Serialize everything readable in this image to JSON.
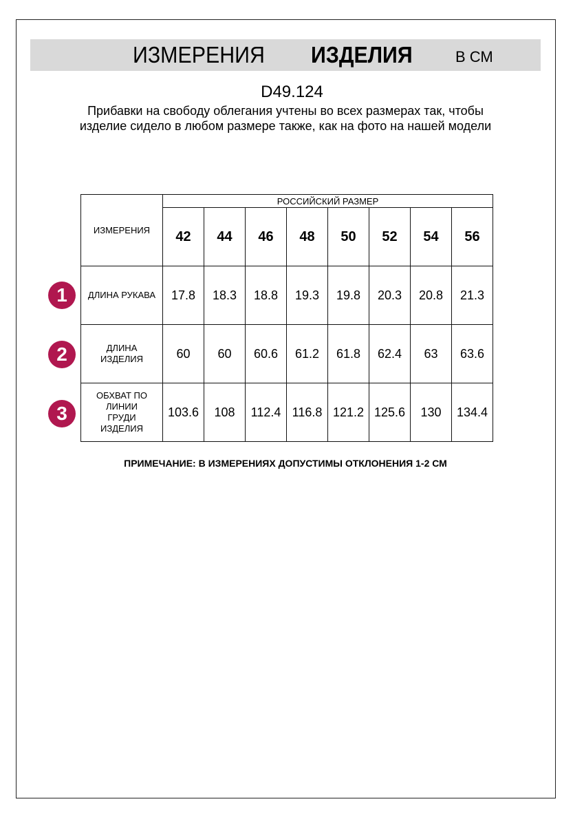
{
  "header": {
    "title_regular": "ИЗМЕРЕНИЯ",
    "title_bold": "ИЗДЕЛИЯ",
    "unit": "В СМ"
  },
  "product_code": "D49.124",
  "description": "Прибавки на свободу облегания учтены во всех размерах так, чтобы изделие сидело в любом размере также, как на фото на нашей модели",
  "table": {
    "measure_header": "ИЗМЕРЕНИЯ",
    "size_group_header": "РОССИЙСКИЙ РАЗМЕР",
    "sizes": [
      "42",
      "44",
      "46",
      "48",
      "50",
      "52",
      "54",
      "56"
    ],
    "rows": [
      {
        "number": "1",
        "label": "ДЛИНА РУКАВА",
        "values": [
          "17.8",
          "18.3",
          "18.8",
          "19.3",
          "19.8",
          "20.3",
          "20.8",
          "21.3"
        ]
      },
      {
        "number": "2",
        "label": "ДЛИНА ИЗДЕЛИЯ",
        "values": [
          "60",
          "60",
          "60.6",
          "61.2",
          "61.8",
          "62.4",
          "63",
          "63.6"
        ]
      },
      {
        "number": "3",
        "label": "ОБХВАТ ПО ЛИНИИ ГРУДИ ИЗДЕЛИЯ",
        "values": [
          "103.6",
          "108",
          "112.4",
          "116.8",
          "121.2",
          "125.6",
          "130",
          "134.4"
        ]
      }
    ]
  },
  "note": "ПРИМЕЧАНИЕ: В ИЗМЕРЕНИЯХ ДОПУСТИМЫ ОТКЛОНЕНИЯ 1-2 СМ",
  "colors": {
    "badge": "#b0174f",
    "title_bar": "#d9d9d9"
  }
}
